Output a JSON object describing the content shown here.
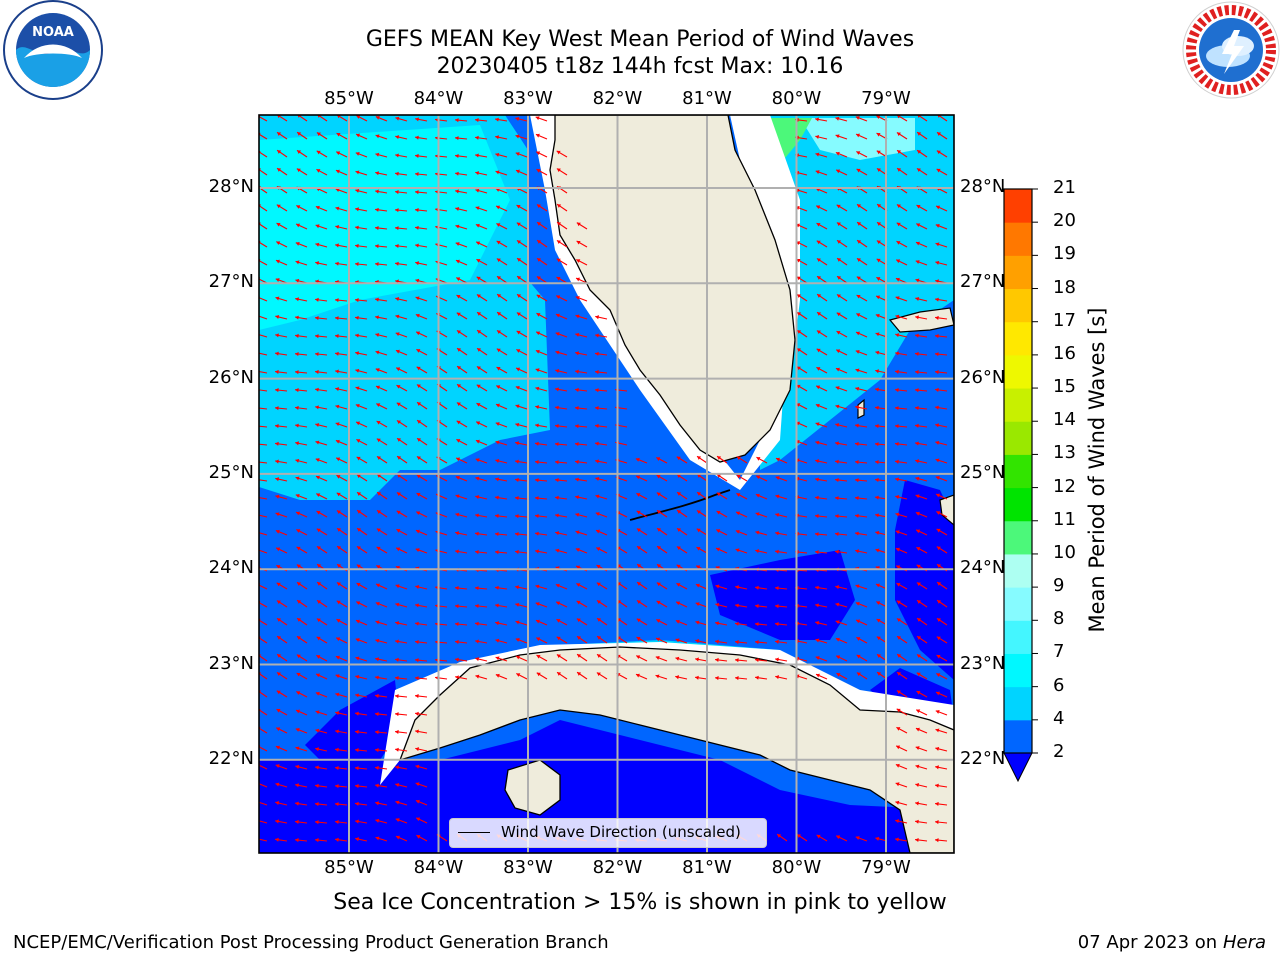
{
  "header": {
    "title_line1": "GEFS MEAN Key West Mean Period of Wind Waves",
    "title_line2": "20230405 t18z 144h fcst   Max: 10.16"
  },
  "logos": {
    "left": {
      "icon": "noaa-logo-icon",
      "text": "NOAA"
    },
    "right": {
      "icon": "nws-logo-icon"
    }
  },
  "map": {
    "lon_labels": [
      "85°W",
      "84°W",
      "83°W",
      "82°W",
      "81°W",
      "80°W",
      "79°W"
    ],
    "lat_labels": [
      "28°N",
      "27°N",
      "26°N",
      "25°N",
      "24°N",
      "23°N",
      "22°N"
    ],
    "legend_label": "Wind Wave Direction (unscaled)",
    "colors": {
      "land": "#efecdc",
      "arrow": "#ff0000",
      "gridline": "#b0b0b0"
    }
  },
  "colorbar": {
    "label": "Mean Period of Wind Waves [s]",
    "ticks": [
      "2",
      "4",
      "6",
      "7",
      "8",
      "9",
      "10",
      "11",
      "12",
      "13",
      "14",
      "15",
      "16",
      "17",
      "18",
      "19",
      "20",
      "21"
    ],
    "colors": [
      "#0066ff",
      "#00d4ff",
      "#00f8ff",
      "#44f6ff",
      "#86fbff",
      "#adfff2",
      "#4cf87a",
      "#00e400",
      "#32e400",
      "#9ae800",
      "#c8f000",
      "#eef800",
      "#ffe800",
      "#ffc800",
      "#ffa000",
      "#ff7800",
      "#ff4000",
      "#ff0000"
    ],
    "under_color": "#0000ff"
  },
  "footer": {
    "caption": "Sea Ice Concentration > 15% is shown in pink to yellow",
    "left": "NCEP/EMC/Verification Post Processing Product Generation Branch",
    "right_date": "07 Apr 2023 on ",
    "right_host": "Hera"
  }
}
